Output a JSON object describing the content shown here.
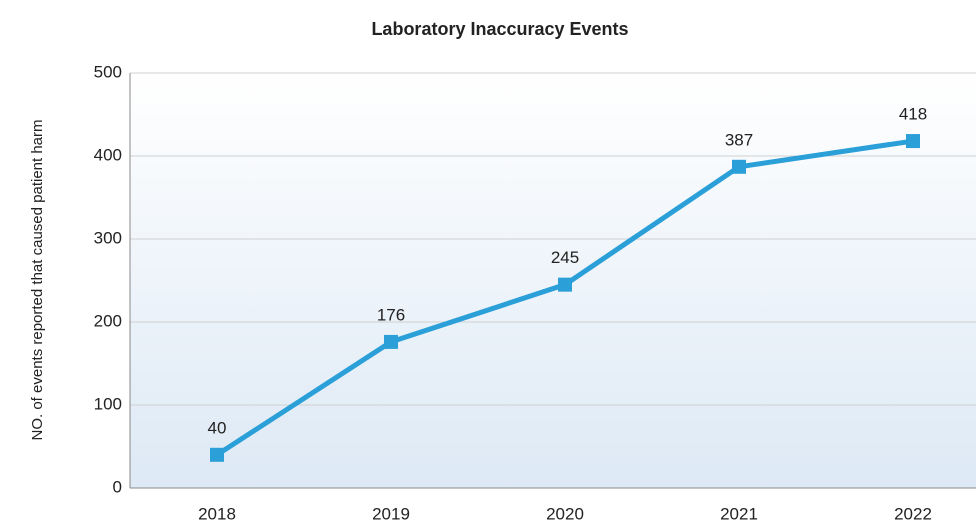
{
  "chart_data": {
    "type": "line",
    "title": "Laboratory Inaccuracy Events",
    "ylabel": "NO. of events reported that caused patient harm",
    "categories": [
      "2018",
      "2019",
      "2020",
      "2021",
      "2022"
    ],
    "values": [
      40,
      176,
      245,
      387,
      418
    ],
    "color": "#2a9fd8",
    "ylim": [
      0,
      500
    ],
    "yticks": [
      0,
      100,
      200,
      300,
      400,
      500
    ],
    "grid": true
  }
}
